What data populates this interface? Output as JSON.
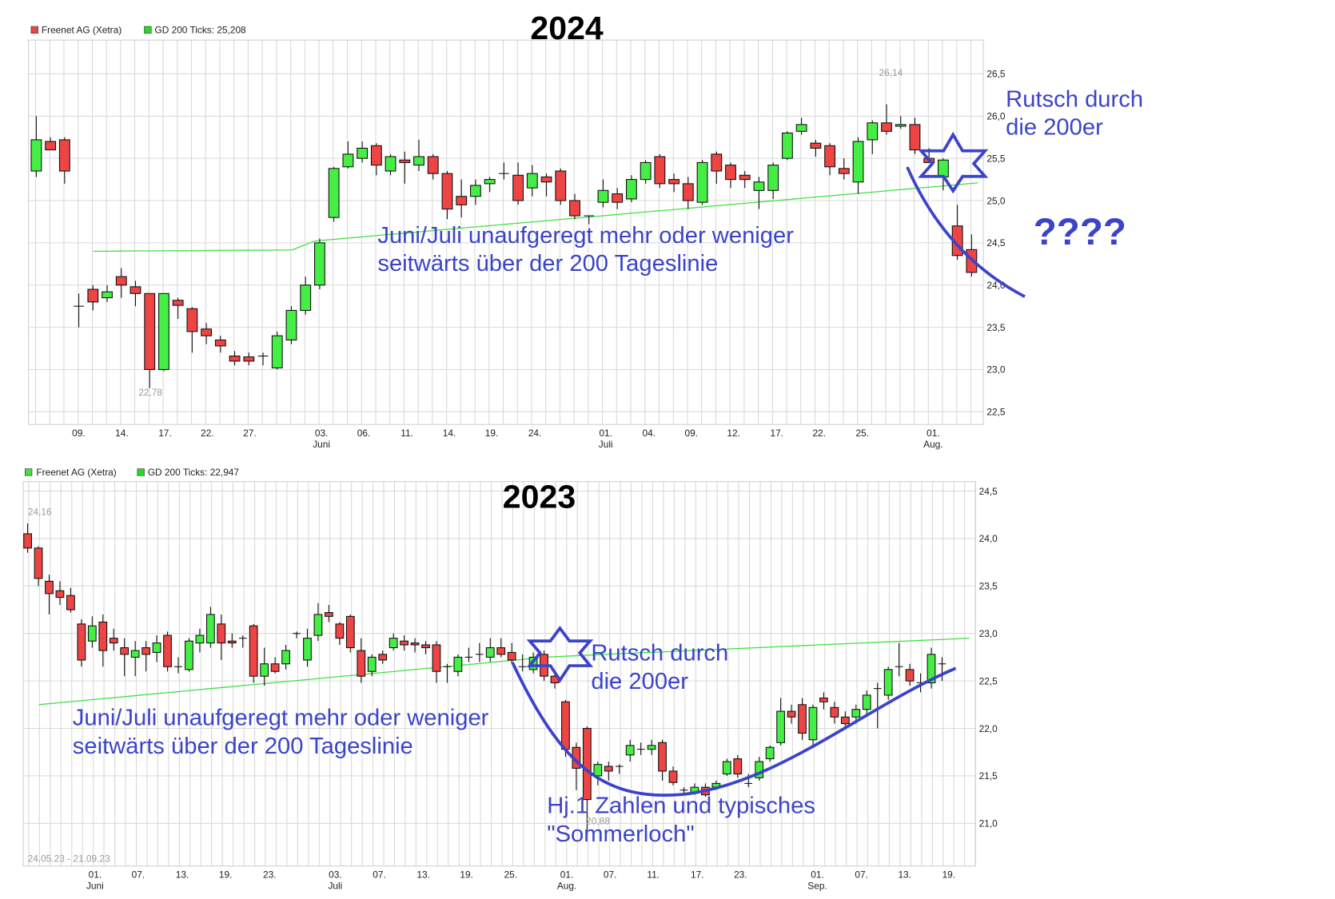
{
  "chart_data": [
    {
      "type": "candlestick",
      "title": "2024",
      "legend": [
        {
          "label": "Freenet AG (Xetra)",
          "color": "#ef4444"
        },
        {
          "label": "GD 200 Ticks: 25,208",
          "color": "#22dd22"
        }
      ],
      "ylim": [
        22.3,
        26.6
      ],
      "yticks": [
        "26,5",
        "26,0",
        "25,5",
        "25,0",
        "24,5",
        "24,0",
        "23,5",
        "23,0",
        "22,5"
      ],
      "xticks": [
        "09.",
        "14.",
        "17.",
        "22.",
        "27.",
        "03.",
        "06.",
        "11.",
        "14.",
        "19.",
        "24.",
        "01.",
        "04.",
        "09.",
        "12.",
        "17.",
        "22.",
        "25.",
        "01."
      ],
      "month_labels": [
        "Juni",
        "Juli",
        "Aug."
      ],
      "max_label": "26,14",
      "min_label": "22,78",
      "ma200_start": 24.4,
      "ma200_end": 25.21,
      "annotations": [
        "Juni/Juli  unaufgeregt mehr oder weniger",
        "seitwärts über der 200 Tageslinie",
        "Rutsch durch",
        "die 200er",
        "????"
      ]
    },
    {
      "type": "candlestick",
      "title": "2023",
      "legend": [
        {
          "label": "Freenet AG (Xetra)",
          "color": "#44dd44"
        },
        {
          "label": "GD 200 Ticks: 22,947",
          "color": "#22dd22"
        }
      ],
      "ylim": [
        20.6,
        24.6
      ],
      "yticks": [
        "24,5",
        "24,0",
        "23,5",
        "23,0",
        "22,5",
        "22,0",
        "21,5",
        "21,0"
      ],
      "xticks": [
        "01.",
        "07.",
        "13.",
        "19.",
        "23.",
        "03.",
        "07.",
        "13.",
        "19.",
        "25.",
        "01.",
        "07.",
        "11.",
        "17.",
        "23.",
        "01.",
        "07.",
        "13.",
        "19."
      ],
      "month_labels": [
        "Juni",
        "Juli",
        "Aug.",
        "Sep."
      ],
      "max_label": "24,16",
      "min_label": "20,88",
      "date_range": "24.05.23 - 21.09.23",
      "ma200_start": 22.25,
      "ma200_end": 22.95,
      "annotations": [
        "Juni/Juli  unaufgeregt mehr oder weniger",
        "seitwärts über der 200 Tageslinie",
        "Rutsch durch",
        "die 200er",
        "Hj.1 Zahlen und typisches",
        "\"Sommerloch\""
      ]
    }
  ],
  "top": {
    "year": "2024",
    "legend1": "Freenet AG (Xetra)",
    "legend2": "GD 200 Ticks: 25,208",
    "max_label": "26,14",
    "min_label": "22,78",
    "anno1": "Juni/Juli  unaufgeregt mehr oder weniger",
    "anno2": "seitwärts über der 200 Tageslinie",
    "rutsch1": "Rutsch durch",
    "rutsch2": "die 200er",
    "question": "????"
  },
  "bottom": {
    "year": "2023",
    "legend1": "Freenet AG (Xetra)",
    "legend2": "GD 200 Ticks: 22,947",
    "max_label": "24,16",
    "min_label": "20,88",
    "date_range": "24.05.23 - 21.09.23",
    "anno1": "Juni/Juli  unaufgeregt mehr oder weniger",
    "anno2": "seitwärts über der 200 Tageslinie",
    "rutsch1": "Rutsch durch",
    "rutsch2": "die 200er",
    "hj1": "Hj.1 Zahlen und typisches",
    "hj2": "\"Sommerloch\""
  },
  "colors": {
    "up": "#44ee44",
    "down": "#ee4444",
    "ma": "#33e033",
    "annotation": "#3b44c8",
    "grid": "#d9d9d9"
  },
  "candles_top": [
    [
      25.72,
      25.35,
      26.0,
      25.28,
      "u"
    ],
    [
      25.6,
      25.7,
      25.75,
      25.6,
      "d"
    ],
    [
      25.72,
      25.35,
      25.75,
      25.2,
      "d"
    ],
    [
      23.75,
      23.75,
      23.9,
      23.5,
      "n"
    ],
    [
      23.95,
      23.8,
      24.0,
      23.7,
      "d"
    ],
    [
      23.85,
      23.92,
      24.0,
      23.8,
      "u"
    ],
    [
      24.1,
      24.0,
      24.2,
      23.85,
      "d"
    ],
    [
      23.98,
      23.9,
      24.05,
      23.75,
      "d"
    ],
    [
      23.9,
      23.0,
      23.9,
      22.78,
      "d"
    ],
    [
      23.0,
      23.9,
      23.9,
      22.98,
      "u"
    ],
    [
      23.82,
      23.76,
      23.85,
      23.6,
      "d"
    ],
    [
      23.72,
      23.45,
      23.74,
      23.2,
      "d"
    ],
    [
      23.48,
      23.4,
      23.55,
      23.3,
      "d"
    ],
    [
      23.35,
      23.28,
      23.4,
      23.2,
      "d"
    ],
    [
      23.16,
      23.1,
      23.22,
      23.05,
      "d"
    ],
    [
      23.15,
      23.1,
      23.2,
      23.05,
      "d"
    ],
    [
      23.15,
      23.16,
      23.2,
      23.05,
      "n"
    ],
    [
      23.02,
      23.4,
      23.45,
      23.0,
      "u"
    ],
    [
      23.35,
      23.7,
      23.75,
      23.3,
      "u"
    ],
    [
      23.7,
      24.0,
      24.1,
      23.65,
      "u"
    ],
    [
      24.0,
      24.5,
      24.55,
      23.95,
      "u"
    ],
    [
      24.8,
      25.38,
      25.4,
      24.75,
      "u"
    ],
    [
      25.4,
      25.55,
      25.7,
      25.38,
      "u"
    ],
    [
      25.5,
      25.62,
      25.7,
      25.45,
      "u"
    ],
    [
      25.65,
      25.42,
      25.68,
      25.3,
      "d"
    ],
    [
      25.35,
      25.52,
      25.55,
      25.3,
      "u"
    ],
    [
      25.48,
      25.45,
      25.58,
      25.2,
      "d"
    ],
    [
      25.42,
      25.52,
      25.72,
      25.35,
      "u"
    ],
    [
      25.52,
      25.32,
      25.55,
      25.25,
      "d"
    ],
    [
      25.32,
      24.9,
      25.35,
      24.78,
      "d"
    ],
    [
      24.95,
      25.05,
      25.25,
      24.8,
      "d"
    ],
    [
      25.05,
      25.18,
      25.25,
      24.95,
      "u"
    ],
    [
      25.2,
      25.25,
      25.28,
      25.1,
      "u"
    ],
    [
      25.3,
      25.32,
      25.45,
      25.25,
      "n"
    ],
    [
      25.3,
      25.0,
      25.45,
      24.95,
      "d"
    ],
    [
      25.15,
      25.32,
      25.42,
      25.05,
      "u"
    ],
    [
      25.28,
      25.22,
      25.32,
      25.05,
      "d"
    ],
    [
      25.35,
      25.0,
      25.38,
      24.95,
      "d"
    ],
    [
      25.0,
      24.82,
      25.08,
      24.78,
      "d"
    ],
    [
      24.82,
      24.82,
      24.82,
      24.72,
      "n"
    ],
    [
      24.98,
      25.12,
      25.25,
      24.92,
      "u"
    ],
    [
      25.08,
      24.98,
      25.15,
      24.9,
      "d"
    ],
    [
      25.02,
      25.25,
      25.3,
      24.98,
      "u"
    ],
    [
      25.25,
      25.45,
      25.48,
      25.2,
      "u"
    ],
    [
      25.52,
      25.2,
      25.55,
      25.15,
      "d"
    ],
    [
      25.25,
      25.2,
      25.32,
      25.1,
      "d"
    ],
    [
      25.2,
      25.0,
      25.28,
      24.9,
      "d"
    ],
    [
      24.98,
      25.45,
      25.48,
      24.95,
      "u"
    ],
    [
      25.55,
      25.35,
      25.58,
      25.2,
      "d"
    ],
    [
      25.42,
      25.25,
      25.45,
      25.15,
      "d"
    ],
    [
      25.3,
      25.25,
      25.35,
      25.15,
      "d"
    ],
    [
      25.12,
      25.22,
      25.28,
      24.9,
      "u"
    ],
    [
      25.12,
      25.42,
      25.45,
      25.02,
      "u"
    ],
    [
      25.5,
      25.8,
      25.82,
      25.48,
      "u"
    ],
    [
      25.82,
      25.9,
      25.98,
      25.78,
      "u"
    ],
    [
      25.68,
      25.62,
      25.72,
      25.52,
      "d"
    ],
    [
      25.65,
      25.4,
      25.68,
      25.3,
      "d"
    ],
    [
      25.38,
      25.32,
      25.5,
      25.25,
      "d"
    ],
    [
      25.22,
      25.7,
      25.75,
      25.08,
      "u"
    ],
    [
      25.72,
      25.92,
      25.95,
      25.55,
      "u"
    ],
    [
      25.92,
      25.82,
      26.14,
      25.78,
      "d"
    ],
    [
      25.88,
      25.9,
      26.0,
      25.85,
      "u"
    ],
    [
      25.9,
      25.6,
      25.98,
      25.55,
      "d"
    ],
    [
      25.5,
      25.45,
      25.62,
      25.45,
      "d"
    ],
    [
      25.28,
      25.48,
      25.5,
      25.12,
      "u"
    ],
    [
      24.7,
      24.35,
      24.95,
      24.3,
      "d"
    ],
    [
      24.42,
      24.15,
      24.6,
      24.1,
      "d"
    ]
  ],
  "candles_bottom": [
    [
      24.05,
      23.9,
      24.16,
      23.85,
      "d"
    ],
    [
      23.9,
      23.58,
      23.92,
      23.5,
      "d"
    ],
    [
      23.55,
      23.42,
      23.62,
      23.2,
      "d"
    ],
    [
      23.45,
      23.38,
      23.55,
      23.3,
      "d"
    ],
    [
      23.4,
      23.25,
      23.48,
      23.22,
      "d"
    ],
    [
      23.1,
      22.72,
      23.15,
      22.65,
      "d"
    ],
    [
      22.92,
      23.08,
      23.18,
      22.85,
      "u"
    ],
    [
      23.12,
      22.82,
      23.2,
      22.65,
      "d"
    ],
    [
      22.95,
      22.9,
      23.05,
      22.82,
      "d"
    ],
    [
      22.85,
      22.78,
      22.95,
      22.55,
      "d"
    ],
    [
      22.75,
      22.82,
      22.92,
      22.55,
      "u"
    ],
    [
      22.85,
      22.78,
      22.92,
      22.6,
      "d"
    ],
    [
      22.8,
      22.9,
      22.98,
      22.7,
      "u"
    ],
    [
      22.98,
      22.65,
      23.02,
      22.6,
      "d"
    ],
    [
      22.65,
      22.65,
      22.75,
      22.58,
      "n"
    ],
    [
      22.62,
      22.92,
      22.95,
      22.6,
      "u"
    ],
    [
      22.9,
      22.98,
      23.05,
      22.8,
      "u"
    ],
    [
      23.2,
      22.9,
      23.28,
      22.85,
      "u"
    ],
    [
      23.1,
      22.9,
      23.2,
      22.72,
      "d"
    ],
    [
      22.92,
      22.9,
      23.0,
      22.85,
      "d"
    ],
    [
      22.9,
      22.95,
      22.98,
      22.85,
      "n"
    ],
    [
      23.08,
      22.55,
      23.1,
      22.48,
      "d"
    ],
    [
      22.68,
      22.55,
      22.85,
      22.45,
      "u"
    ],
    [
      22.68,
      22.6,
      22.75,
      22.58,
      "d"
    ],
    [
      22.68,
      22.82,
      22.88,
      22.62,
      "u"
    ],
    [
      22.98,
      23.0,
      23.02,
      22.95,
      "n"
    ],
    [
      22.72,
      22.95,
      23.05,
      22.65,
      "u"
    ],
    [
      23.2,
      22.98,
      23.32,
      22.92,
      "u"
    ],
    [
      23.22,
      23.18,
      23.3,
      23.12,
      "d"
    ],
    [
      23.1,
      22.95,
      23.12,
      22.88,
      "d"
    ],
    [
      23.18,
      22.85,
      23.2,
      22.8,
      "d"
    ],
    [
      22.82,
      22.55,
      22.95,
      22.48,
      "d"
    ],
    [
      22.6,
      22.75,
      22.78,
      22.55,
      "u"
    ],
    [
      22.78,
      22.72,
      22.82,
      22.68,
      "d"
    ],
    [
      22.85,
      22.95,
      23.0,
      22.82,
      "u"
    ],
    [
      22.92,
      22.88,
      22.98,
      22.82,
      "d"
    ],
    [
      22.9,
      22.88,
      22.95,
      22.8,
      "d"
    ],
    [
      22.88,
      22.85,
      22.92,
      22.78,
      "d"
    ],
    [
      22.88,
      22.6,
      22.92,
      22.48,
      "d"
    ],
    [
      22.55,
      22.65,
      22.68,
      22.48,
      "n"
    ],
    [
      22.6,
      22.75,
      22.78,
      22.55,
      "u"
    ],
    [
      22.75,
      22.75,
      22.85,
      22.7,
      "n"
    ],
    [
      22.8,
      22.78,
      22.9,
      22.7,
      "n"
    ],
    [
      22.75,
      22.85,
      22.95,
      22.7,
      "u"
    ],
    [
      22.85,
      22.78,
      22.95,
      22.75,
      "d"
    ],
    [
      22.8,
      22.72,
      22.9,
      22.68,
      "d"
    ],
    [
      22.68,
      22.65,
      22.78,
      22.6,
      "n"
    ],
    [
      22.62,
      22.75,
      22.8,
      22.58,
      "u"
    ],
    [
      22.78,
      22.55,
      22.82,
      22.5,
      "d"
    ],
    [
      22.55,
      22.48,
      22.6,
      22.42,
      "d"
    ],
    [
      22.28,
      21.78,
      22.3,
      21.7,
      "d"
    ],
    [
      21.8,
      21.58,
      21.85,
      21.35,
      "d"
    ],
    [
      22.0,
      21.25,
      22.02,
      20.88,
      "d"
    ],
    [
      21.5,
      21.62,
      21.65,
      21.4,
      "u"
    ],
    [
      21.6,
      21.55,
      21.65,
      21.45,
      "d"
    ],
    [
      21.58,
      21.6,
      21.62,
      21.52,
      "n"
    ],
    [
      21.72,
      21.82,
      21.88,
      21.65,
      "u"
    ],
    [
      21.78,
      21.78,
      21.85,
      21.72,
      "n"
    ],
    [
      21.82,
      21.78,
      21.88,
      21.72,
      "u"
    ],
    [
      21.85,
      21.55,
      21.88,
      21.45,
      "d"
    ],
    [
      21.55,
      21.43,
      21.6,
      21.4,
      "d"
    ],
    [
      21.35,
      21.35,
      21.38,
      21.32,
      "n"
    ],
    [
      21.32,
      21.38,
      21.42,
      21.3,
      "u"
    ],
    [
      21.38,
      21.3,
      21.42,
      21.28,
      "d"
    ],
    [
      21.38,
      21.42,
      21.45,
      21.35,
      "u"
    ],
    [
      21.52,
      21.65,
      21.68,
      21.5,
      "u"
    ],
    [
      21.68,
      21.52,
      21.72,
      21.48,
      "d"
    ],
    [
      21.48,
      21.42,
      21.52,
      21.38,
      "n"
    ],
    [
      21.48,
      21.65,
      21.7,
      21.45,
      "u"
    ],
    [
      21.68,
      21.8,
      21.82,
      21.65,
      "u"
    ],
    [
      21.85,
      22.18,
      22.32,
      21.82,
      "u"
    ],
    [
      22.18,
      22.12,
      22.25,
      22.05,
      "d"
    ],
    [
      22.25,
      21.95,
      22.32,
      21.88,
      "d"
    ],
    [
      22.22,
      21.88,
      22.25,
      21.82,
      "u"
    ],
    [
      22.32,
      22.28,
      22.38,
      22.2,
      "d"
    ],
    [
      22.22,
      22.12,
      22.28,
      22.05,
      "d"
    ],
    [
      22.12,
      22.05,
      22.18,
      22.0,
      "d"
    ],
    [
      22.12,
      22.2,
      22.25,
      22.05,
      "u"
    ],
    [
      22.2,
      22.35,
      22.4,
      22.12,
      "u"
    ],
    [
      22.42,
      22.42,
      22.48,
      22.0,
      "n"
    ],
    [
      22.35,
      22.62,
      22.65,
      22.3,
      "u"
    ],
    [
      22.62,
      22.65,
      22.9,
      22.55,
      "n"
    ],
    [
      22.62,
      22.5,
      22.68,
      22.45,
      "d"
    ],
    [
      22.48,
      22.48,
      22.58,
      22.38,
      "n"
    ],
    [
      22.48,
      22.78,
      22.85,
      22.42,
      "u"
    ],
    [
      22.68,
      22.68,
      22.75,
      22.5,
      "n"
    ]
  ]
}
